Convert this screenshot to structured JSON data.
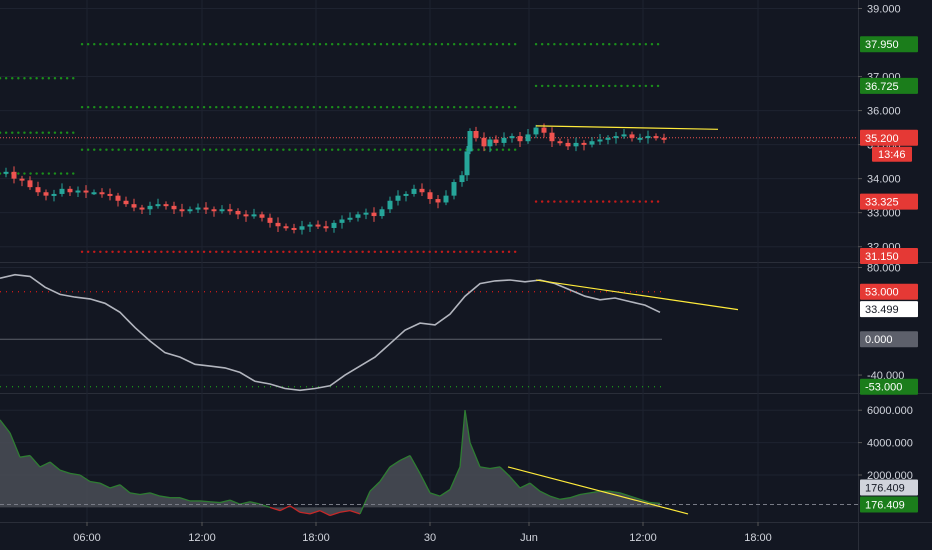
{
  "colors": {
    "background": "#131722",
    "grid": "#1e2330",
    "axis_text": "#d1d4dc",
    "up": "#26a69a",
    "down": "#ef5350",
    "level_green": "#1b8f1b",
    "level_red": "#c41a1a",
    "trendline": "#ffeb3b",
    "osc_line": "#b2b5be",
    "vol_fill": "#4a4d56",
    "vol_line_up": "#2e7d32",
    "vol_line_down": "#c62828",
    "label_green": "#1b7d1b",
    "label_red": "#e53935",
    "label_gray": "#5d606b",
    "label_white": "#ffffff"
  },
  "chart_data": [
    {
      "type": "candlestick",
      "pane": "price",
      "ylim": [
        31.55,
        39.25
      ],
      "yticks": [
        "39.000",
        "37.000",
        "36.000",
        "35.000",
        "34.000",
        "33.000",
        "32.000"
      ],
      "candles_close_path": [
        [
          -1,
          34.15
        ],
        [
          6,
          34.2
        ],
        [
          14,
          34.0
        ],
        [
          22,
          33.95
        ],
        [
          30,
          33.75
        ],
        [
          38,
          33.6
        ],
        [
          46,
          33.5
        ],
        [
          54,
          33.55
        ],
        [
          62,
          33.7
        ],
        [
          70,
          33.6
        ],
        [
          78,
          33.65
        ],
        [
          86,
          33.6
        ],
        [
          94,
          33.6
        ],
        [
          102,
          33.55
        ],
        [
          110,
          33.5
        ],
        [
          118,
          33.35
        ],
        [
          126,
          33.25
        ],
        [
          134,
          33.15
        ],
        [
          142,
          33.1
        ],
        [
          150,
          33.2
        ],
        [
          158,
          33.25
        ],
        [
          166,
          33.2
        ],
        [
          174,
          33.1
        ],
        [
          182,
          33.05
        ],
        [
          190,
          33.1
        ],
        [
          198,
          33.15
        ],
        [
          206,
          33.1
        ],
        [
          214,
          33.05
        ],
        [
          222,
          33.1
        ],
        [
          230,
          33.05
        ],
        [
          238,
          32.95
        ],
        [
          246,
          32.9
        ],
        [
          254,
          32.95
        ],
        [
          262,
          32.85
        ],
        [
          270,
          32.7
        ],
        [
          278,
          32.6
        ],
        [
          286,
          32.55
        ],
        [
          294,
          32.5
        ],
        [
          302,
          32.6
        ],
        [
          310,
          32.65
        ],
        [
          318,
          32.6
        ],
        [
          326,
          32.55
        ],
        [
          334,
          32.7
        ],
        [
          342,
          32.8
        ],
        [
          350,
          32.85
        ],
        [
          358,
          32.95
        ],
        [
          366,
          33.0
        ],
        [
          374,
          32.9
        ],
        [
          382,
          33.1
        ],
        [
          390,
          33.35
        ],
        [
          398,
          33.5
        ],
        [
          406,
          33.55
        ],
        [
          414,
          33.7
        ],
        [
          422,
          33.6
        ],
        [
          430,
          33.4
        ],
        [
          438,
          33.3
        ],
        [
          446,
          33.5
        ],
        [
          454,
          33.9
        ],
        [
          462,
          34.1
        ],
        [
          467,
          34.8
        ],
        [
          470,
          35.4
        ],
        [
          476,
          35.2
        ],
        [
          484,
          34.95
        ],
        [
          490,
          35.15
        ],
        [
          496,
          35.05
        ],
        [
          504,
          35.2
        ],
        [
          512,
          35.25
        ],
        [
          520,
          35.1
        ],
        [
          528,
          35.3
        ],
        [
          536,
          35.5
        ],
        [
          544,
          35.35
        ],
        [
          552,
          35.1
        ],
        [
          560,
          35.05
        ],
        [
          568,
          34.95
        ],
        [
          576,
          35.05
        ],
        [
          584,
          35.0
        ],
        [
          592,
          35.1
        ],
        [
          600,
          35.15
        ],
        [
          608,
          35.2
        ],
        [
          616,
          35.25
        ],
        [
          624,
          35.3
        ],
        [
          632,
          35.2
        ],
        [
          640,
          35.2
        ],
        [
          648,
          35.25
        ],
        [
          656,
          35.2
        ],
        [
          664,
          35.15
        ]
      ],
      "levels": [
        {
          "value": 37.95,
          "color": "green",
          "from": 82,
          "to": 520,
          "label": ""
        },
        {
          "value": 37.95,
          "color": "green",
          "from": 536,
          "to": 664,
          "label": "37.950"
        },
        {
          "value": 36.95,
          "color": "green",
          "from": 0,
          "to": 78,
          "label": ""
        },
        {
          "value": 36.725,
          "color": "green",
          "from": 536,
          "to": 664,
          "label": "36.725"
        },
        {
          "value": 36.1,
          "color": "green",
          "from": 82,
          "to": 520,
          "label": ""
        },
        {
          "value": 35.35,
          "color": "green",
          "from": 0,
          "to": 78,
          "label": ""
        },
        {
          "value": 34.85,
          "color": "green",
          "from": 82,
          "to": 520,
          "label": ""
        },
        {
          "value": 34.15,
          "color": "green",
          "from": 0,
          "to": 78,
          "label": ""
        },
        {
          "value": 33.325,
          "color": "red",
          "from": 536,
          "to": 664,
          "label": "33.325"
        },
        {
          "value": 31.85,
          "color": "red",
          "from": 82,
          "to": 520,
          "label": ""
        },
        {
          "value": 31.55,
          "color": "red",
          "from": 0,
          "to": 78,
          "label": ""
        },
        {
          "value": 31.15,
          "color": "red",
          "from": 536,
          "to": 664,
          "label": "31.150"
        }
      ],
      "last_price": {
        "value": 35.2,
        "label": "35.200",
        "countdown": "13:46"
      },
      "trendline": [
        [
          536,
          35.55
        ],
        [
          718,
          35.45
        ]
      ]
    },
    {
      "type": "line",
      "pane": "oscillator",
      "ylim": [
        -60,
        85
      ],
      "yticks": [
        "80.000",
        "-40.000"
      ],
      "series": [
        {
          "x": [
            0,
            15,
            30,
            45,
            60,
            75,
            90,
            105,
            120,
            135,
            150,
            165,
            180,
            195,
            210,
            225,
            240,
            255,
            270,
            285,
            300,
            315,
            330,
            345,
            360,
            375,
            390,
            405,
            420,
            435,
            450,
            465,
            480,
            495,
            510,
            525,
            540,
            555,
            570,
            585,
            600,
            615,
            630,
            645,
            660
          ],
          "values": [
            68,
            72,
            70,
            58,
            50,
            47,
            45,
            40,
            30,
            13,
            -2,
            -15,
            -20,
            -28,
            -30,
            -32,
            -37,
            -47,
            -50,
            -55,
            -57,
            -55,
            -52,
            -40,
            -30,
            -20,
            -5,
            10,
            18,
            16,
            28,
            48,
            62,
            65,
            66,
            64,
            66,
            62,
            55,
            48,
            44,
            46,
            42,
            38,
            30
          ]
        }
      ],
      "levels": [
        {
          "value": 53,
          "color": "red",
          "label": "53.000"
        },
        {
          "value": 0,
          "color": "gray",
          "label": "0.000"
        },
        {
          "value": -53,
          "color": "green",
          "label": "-53.000"
        }
      ],
      "current": {
        "value": 33.499,
        "label": "33.499"
      },
      "trendline": [
        [
          536,
          66
        ],
        [
          738,
          33
        ]
      ]
    },
    {
      "type": "area",
      "pane": "volume_oscillator",
      "ylim": [
        -900,
        7000
      ],
      "yticks": [
        "6000.000",
        "4000.000",
        "2000.000"
      ],
      "series": [
        {
          "x": [
            0,
            10,
            20,
            30,
            40,
            50,
            60,
            70,
            80,
            90,
            100,
            110,
            120,
            130,
            140,
            150,
            160,
            170,
            180,
            190,
            200,
            210,
            220,
            230,
            240,
            250,
            260,
            270,
            280,
            290,
            300,
            310,
            320,
            330,
            340,
            350,
            360,
            370,
            380,
            390,
            400,
            410,
            420,
            430,
            440,
            450,
            460,
            465,
            470,
            480,
            490,
            500,
            510,
            520,
            530,
            540,
            550,
            560,
            570,
            580,
            590,
            600,
            610,
            620,
            630,
            640,
            650,
            660
          ],
          "values": [
            5400,
            4600,
            3100,
            3200,
            2500,
            2800,
            2300,
            2100,
            2000,
            1600,
            1500,
            1200,
            1400,
            900,
            800,
            900,
            700,
            600,
            600,
            400,
            400,
            350,
            300,
            450,
            200,
            350,
            200,
            0,
            -200,
            100,
            -300,
            -400,
            -200,
            -500,
            -300,
            -200,
            -400,
            1000,
            1600,
            2500,
            2900,
            3200,
            2100,
            900,
            700,
            1100,
            2500,
            6000,
            4000,
            2500,
            2400,
            2500,
            1900,
            1200,
            1500,
            1000,
            700,
            500,
            600,
            800,
            900,
            1000,
            1000,
            900,
            700,
            500,
            300,
            250
          ]
        }
      ],
      "current": {
        "value": 176.409,
        "label": "176.409",
        "label2": "176.409"
      },
      "trendline": [
        [
          508,
          2500
        ],
        [
          688,
          -400
        ]
      ]
    }
  ],
  "xaxis": {
    "ticks": [
      {
        "x": 87,
        "label": "06:00"
      },
      {
        "x": 202,
        "label": "12:00"
      },
      {
        "x": 316,
        "label": "18:00"
      },
      {
        "x": 430,
        "label": "30"
      },
      {
        "x": 529,
        "label": "Jun"
      },
      {
        "x": 643,
        "label": "12:00"
      },
      {
        "x": 758,
        "label": "18:00"
      }
    ]
  }
}
